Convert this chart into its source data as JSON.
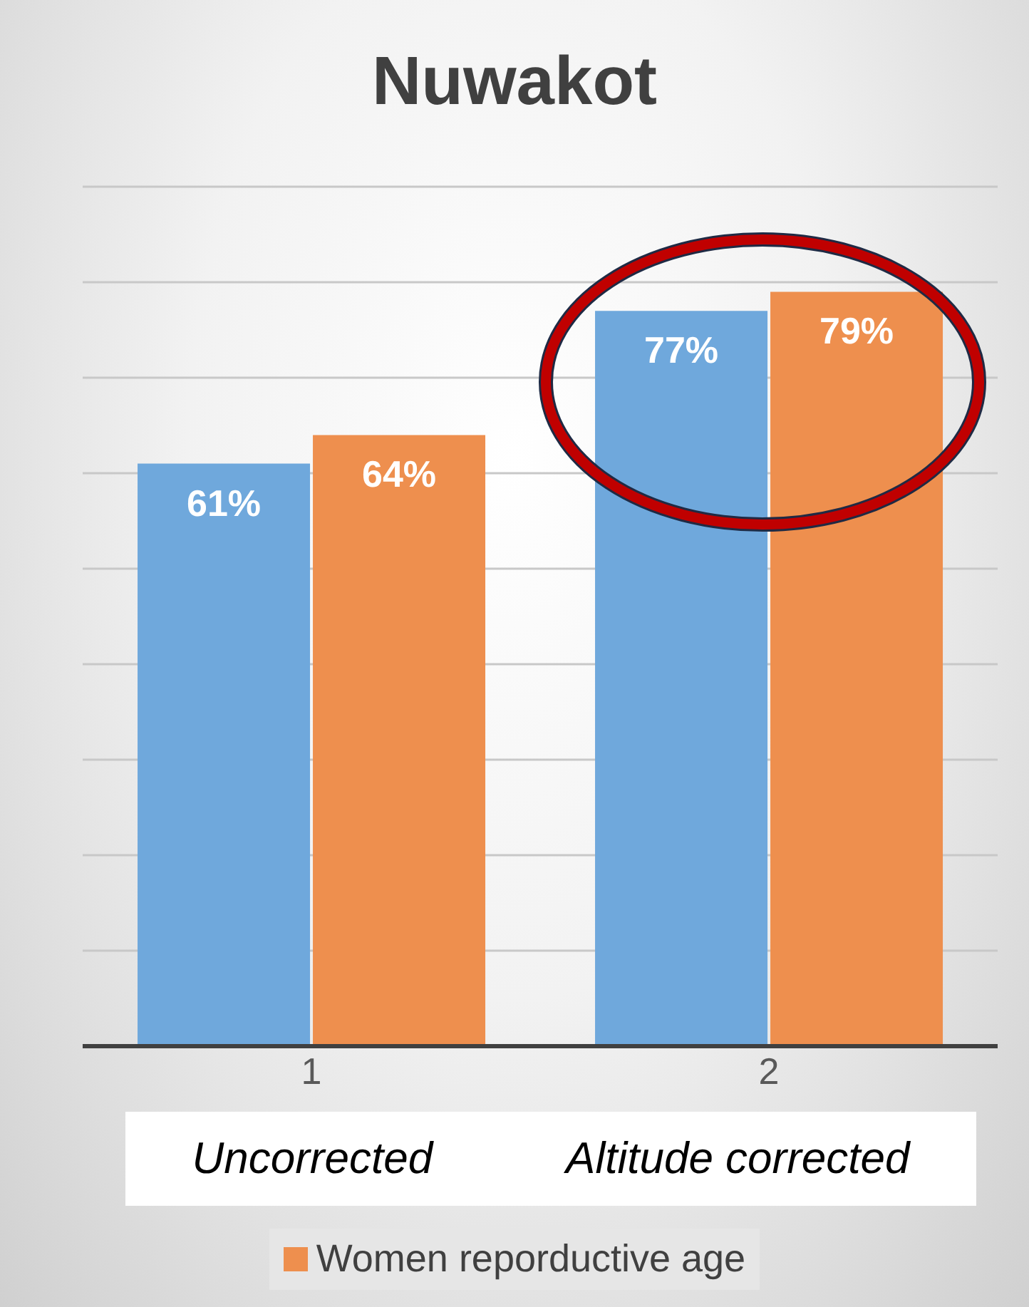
{
  "chart_data": {
    "type": "bar",
    "title": "Nuwakot",
    "categories": [
      "1",
      "2"
    ],
    "series": [
      {
        "color": "#6fa8dc",
        "values": [
          61,
          77
        ],
        "value_labels": [
          "61%",
          "77%"
        ]
      },
      {
        "name": "Women reporductive age",
        "color": "#ee8f4e",
        "values": [
          64,
          79
        ],
        "value_labels": [
          "64%",
          "79%"
        ]
      }
    ],
    "ylim": [
      0,
      90
    ],
    "yticks": [
      {
        "value": 0,
        "label": null
      },
      {
        "value": 10,
        "label": null
      },
      {
        "value": 20,
        "label": null
      },
      {
        "value": 30,
        "label": null
      },
      {
        "value": 40,
        "label": null
      },
      {
        "value": 50,
        "label": null
      },
      {
        "value": 60,
        "label": null
      },
      {
        "value": 70,
        "label": null
      },
      {
        "value": 80,
        "label": null
      },
      {
        "value": 90,
        "label": null
      }
    ],
    "tick_labels": "x",
    "grid": "y",
    "legend": "bottom",
    "annotations": [
      "Uncorrected",
      "Altitude corrected"
    ]
  }
}
